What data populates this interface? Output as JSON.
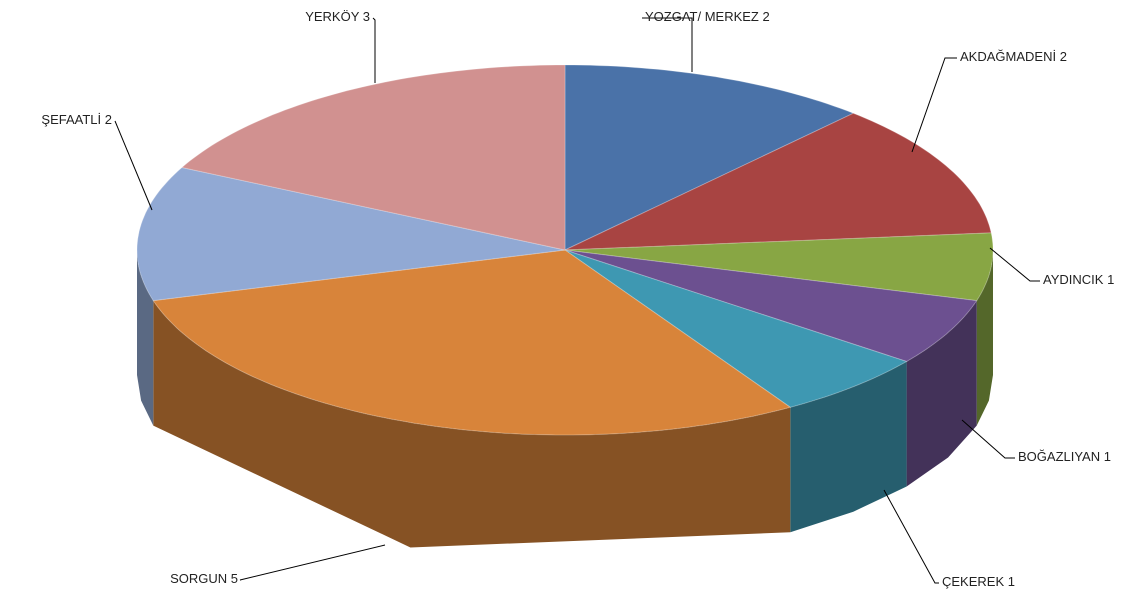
{
  "chart_data": {
    "type": "pie3d",
    "categories": [
      "YOZGAT/ MERKEZ",
      "AKDAĞMADENİ",
      "AYDINCIK",
      "BOĞAZLIYAN",
      "ÇEKEREK",
      "SORGUN",
      "ŞEFAATLİ",
      "YERKÖY"
    ],
    "values": [
      2,
      2,
      1,
      1,
      1,
      5,
      2,
      3
    ],
    "colors": [
      "#4a72a8",
      "#a84442",
      "#88a644",
      "#6c5090",
      "#3e98b2",
      "#d8843a",
      "#91a9d4",
      "#d19190"
    ]
  }
}
